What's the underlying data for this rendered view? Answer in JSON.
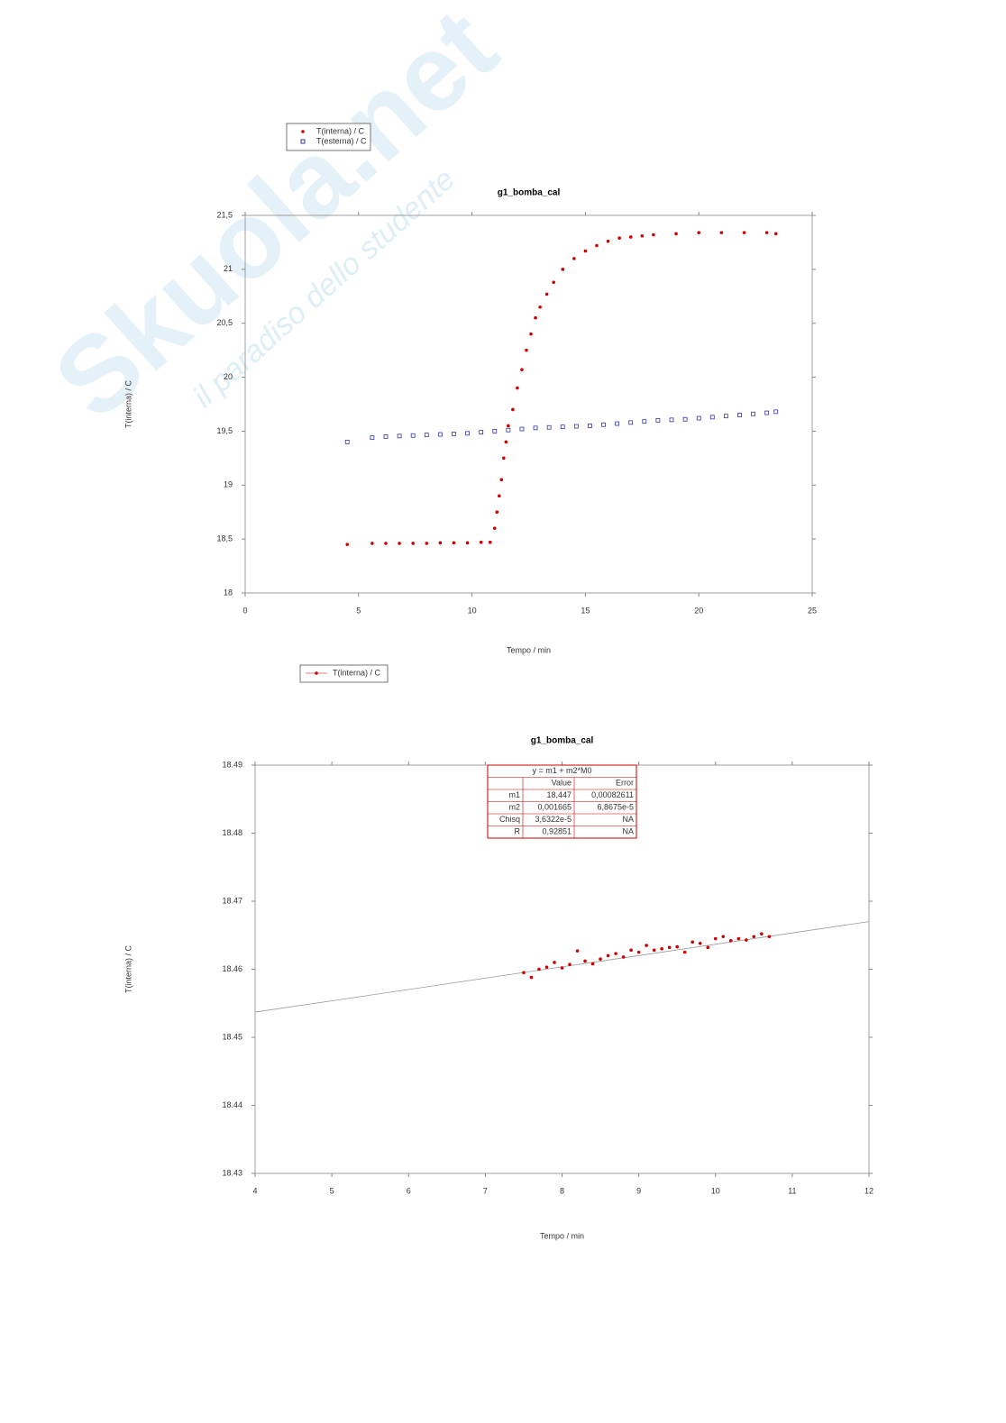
{
  "watermark": {
    "brand": "Skuola.net",
    "tagline": "il paradiso dello studente"
  },
  "chart_data": [
    {
      "type": "scatter",
      "title": "g1_bomba_cal",
      "x_label": "Tempo / min",
      "y_label": "T(interna) / C",
      "xlim": [
        0,
        25
      ],
      "xticks": [
        0,
        5,
        10,
        15,
        20,
        25
      ],
      "ylim": [
        18,
        21.5
      ],
      "yticks": [
        18,
        {
          "value": 18.5,
          "label": "18,5"
        },
        19,
        {
          "value": 19.5,
          "label": "19,5"
        },
        20,
        {
          "value": 20.5,
          "label": "20,5"
        },
        21,
        {
          "value": 21.5,
          "label": "21,5"
        }
      ],
      "series": [
        {
          "name": "T(interna) / C",
          "color": "#cc0000",
          "marker": "circle",
          "x": [
            4.5,
            5.6,
            6.2,
            6.8,
            7.4,
            8.0,
            8.6,
            9.2,
            9.8,
            10.4,
            10.8,
            11.0,
            11.1,
            11.2,
            11.3,
            11.4,
            11.5,
            11.6,
            11.8,
            12.0,
            12.2,
            12.4,
            12.6,
            12.8,
            13.0,
            13.3,
            13.6,
            14.0,
            14.5,
            15.0,
            15.5,
            16.0,
            16.5,
            17.0,
            17.5,
            18.0,
            19.0,
            20.0,
            21.0,
            22.0,
            23.0,
            23.4
          ],
          "values": [
            18.45,
            18.46,
            18.46,
            18.46,
            18.46,
            18.46,
            18.465,
            18.465,
            18.465,
            18.47,
            18.47,
            18.6,
            18.75,
            18.9,
            19.05,
            19.25,
            19.4,
            19.55,
            19.7,
            19.9,
            20.07,
            20.25,
            20.4,
            20.55,
            20.65,
            20.77,
            20.88,
            21.0,
            21.1,
            21.17,
            21.22,
            21.26,
            21.29,
            21.3,
            21.31,
            21.32,
            21.33,
            21.34,
            21.34,
            21.34,
            21.34,
            21.33
          ]
        },
        {
          "name": "T(esterna) / C",
          "color": "#3333aa",
          "marker": "square",
          "x": [
            4.5,
            5.6,
            6.2,
            6.8,
            7.4,
            8.0,
            8.6,
            9.2,
            9.8,
            10.4,
            11.0,
            11.6,
            12.2,
            12.8,
            13.4,
            14.0,
            14.6,
            15.2,
            15.8,
            16.4,
            17.0,
            17.6,
            18.2,
            18.8,
            19.4,
            20.0,
            20.6,
            21.2,
            21.8,
            22.4,
            23.0,
            23.4
          ],
          "values": [
            19.4,
            19.44,
            19.45,
            19.455,
            19.46,
            19.465,
            19.47,
            19.475,
            19.48,
            19.49,
            19.5,
            19.51,
            19.52,
            19.53,
            19.535,
            19.54,
            19.545,
            19.55,
            19.56,
            19.57,
            19.58,
            19.59,
            19.6,
            19.605,
            19.61,
            19.62,
            19.63,
            19.64,
            19.65,
            19.66,
            19.67,
            19.68
          ]
        }
      ]
    },
    {
      "type": "scatter",
      "title": "g1_bomba_cal",
      "x_label": "Tempo / min",
      "y_label": "T(interna) / C",
      "xlim": [
        4,
        12
      ],
      "xticks": [
        4,
        5,
        6,
        7,
        8,
        9,
        10,
        11,
        12
      ],
      "ylim": [
        18.43,
        18.49
      ],
      "yticks": [
        18.43,
        18.44,
        18.45,
        18.46,
        18.47,
        18.48,
        18.49
      ],
      "series": [
        {
          "name": "T(interna) / C",
          "color": "#cc0000",
          "marker": "circle",
          "x": [
            7.5,
            7.6,
            7.7,
            7.8,
            7.9,
            8.0,
            8.1,
            8.2,
            8.3,
            8.4,
            8.5,
            8.6,
            8.7,
            8.8,
            8.9,
            9.0,
            9.1,
            9.2,
            9.3,
            9.4,
            9.5,
            9.6,
            9.7,
            9.8,
            9.9,
            10.0,
            10.1,
            10.2,
            10.3,
            10.4,
            10.5,
            10.6,
            10.7
          ],
          "values": [
            18.4595,
            18.4588,
            18.46,
            18.4603,
            18.461,
            18.4602,
            18.4607,
            18.4627,
            18.4612,
            18.4608,
            18.4615,
            18.462,
            18.4623,
            18.4618,
            18.4628,
            18.4625,
            18.4635,
            18.4628,
            18.463,
            18.4632,
            18.4633,
            18.4625,
            18.464,
            18.4638,
            18.4632,
            18.4645,
            18.4648,
            18.4642,
            18.4645,
            18.4643,
            18.4648,
            18.4652,
            18.4648
          ]
        }
      ],
      "fit_line": {
        "color": "#999999",
        "x": [
          4,
          12
        ],
        "values": [
          18.4537,
          18.467
        ]
      },
      "fit_table": {
        "title": "y = m1 + m2*M0",
        "header": [
          "Value",
          "Error"
        ],
        "rows": [
          [
            "m1",
            "18,447",
            "0,00082611"
          ],
          [
            "m2",
            "0,001665",
            "6,8675e-5"
          ],
          [
            "Chisq",
            "3,6322e-5",
            "NA"
          ],
          [
            "R",
            "0,92851",
            "NA"
          ]
        ]
      }
    }
  ]
}
